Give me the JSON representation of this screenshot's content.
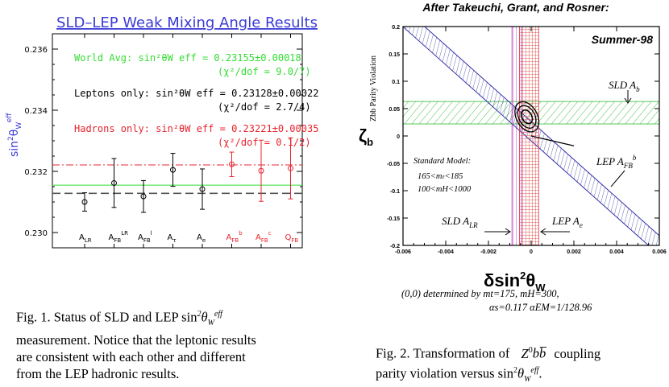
{
  "left_chart": {
    "title": "SLD–LEP Weak Mixing Angle Results",
    "ylabel": "sin²θW eff",
    "ylabel_main": "sin",
    "ylabel_sup": "2",
    "ylabel_theta": "θ",
    "ylabel_sub": "W",
    "ylabel_eff": "eff",
    "y_ticks": [
      "0.230",
      "0.232",
      "0.234",
      "0.236"
    ],
    "world_avg": "World Avg: sin²θW eff = 0.23155±0.00018",
    "world_avg_chi": "(χ²/dof = 9.0/7)",
    "leptons": "Leptons only: sin²θW eff = 0.23128±0.00022",
    "leptons_chi": "(χ²/dof = 2.7/4)",
    "hadrons": "Hadrons only: sin²θW eff = 0.23221±0.00035",
    "hadrons_chi": "(χ²/dof = 0.1/2)",
    "colors": {
      "title": "#3b3bd6",
      "world": "#33dd33",
      "lepton": "#000000",
      "hadron": "#e8242f",
      "ylabel": "#3b3bd6"
    }
  },
  "chart_data": [
    {
      "type": "scatter",
      "title": "SLD–LEP Weak Mixing Angle Results",
      "ylabel": "sin²θW eff",
      "ylim": [
        0.2295,
        0.2365
      ],
      "categories": [
        "ALR",
        "AFB LR",
        "AFB l",
        "Aτ",
        "Ae",
        "AFB b",
        "AFB c",
        "QFB"
      ],
      "category_labels": [
        {
          "base": "A",
          "sub": "LR",
          "sup": ""
        },
        {
          "base": "A",
          "sub": "FB",
          "sup": "LR"
        },
        {
          "base": "A",
          "sub": "FB",
          "sup": "l"
        },
        {
          "base": "A",
          "sub": "τ",
          "sup": ""
        },
        {
          "base": "A",
          "sub": "e",
          "sup": ""
        },
        {
          "base": "A",
          "sub": "FB",
          "sup": "b"
        },
        {
          "base": "A",
          "sub": "FB",
          "sup": "c"
        },
        {
          "base": "Q",
          "sub": "FB",
          "sup": ""
        }
      ],
      "series": [
        {
          "name": "Leptons",
          "color": "#000000",
          "values": [
            0.231,
            0.23162,
            0.23118,
            0.23205,
            0.23142
          ],
          "errors": [
            0.0003,
            0.0008,
            0.00052,
            0.00054,
            0.00066
          ]
        },
        {
          "name": "Hadrons",
          "color": "#e8242f",
          "values": [
            null,
            null,
            null,
            null,
            null,
            0.23223,
            0.23202,
            0.2321
          ],
          "errors": [
            null,
            null,
            null,
            null,
            null,
            0.0004,
            0.001,
            0.001
          ]
        }
      ],
      "reference_lines": [
        {
          "name": "World Avg",
          "value": 0.23155,
          "style": "solid",
          "color": "#33dd33"
        },
        {
          "name": "Leptons only",
          "value": 0.23128,
          "style": "dashed",
          "color": "#555555"
        },
        {
          "name": "Hadrons only",
          "value": 0.23221,
          "style": "dashdot",
          "color": "#e8242f"
        }
      ]
    },
    {
      "type": "scatter",
      "title": "After Takeuchi, Grant, and Rosner:",
      "xlabel": "δsin²θW",
      "ylabel": "ζb",
      "xlim": [
        -0.006,
        0.006
      ],
      "ylim": [
        -0.2,
        0.2
      ],
      "x_ticks": [
        -0.006,
        -0.004,
        -0.002,
        0,
        0.002,
        0.004,
        0.006
      ],
      "y_ticks": [
        -0.2,
        -0.15,
        -0.1,
        -0.05,
        0,
        0.05,
        0.1,
        0.15,
        0.2
      ],
      "bands": [
        {
          "name": "SLD Ab",
          "kind": "horizontal",
          "range": [
            0.022,
            0.063
          ],
          "color": "#33bb33"
        },
        {
          "name": "LEP AFB b",
          "kind": "diagonal",
          "line": [
            [
              -0.0055,
              0.2
            ],
            [
              0.006,
              -0.2
            ]
          ],
          "color": "#3333aa"
        },
        {
          "name": "SLD ALR",
          "kind": "vertical",
          "range": [
            -0.0009,
            -0.00045
          ],
          "color": "#bb33bb"
        },
        {
          "name": "LEP Ae",
          "kind": "vertical",
          "range": [
            -0.00055,
            0.00035
          ],
          "color": "#dd3333"
        }
      ],
      "ellipse_center": [
        -0.0002,
        0.035
      ],
      "sm_range_end": [
        0.002,
        -0.018
      ]
    }
  ],
  "right_chart": {
    "title": "After Takeuchi, Grant, and Rosner:",
    "season": "Summer-98",
    "y_axis_title": "Zbb Parity Violation",
    "ylabel_zeta": "ζ",
    "ylabel_sub": "b",
    "xlabel_delta": "δsin",
    "xlabel_sup": "2",
    "xlabel_theta": "θ",
    "xlabel_sub": "W",
    "x_ticks": [
      "-0.006",
      "-0.004",
      "-0.002",
      "0",
      "0.002",
      "0.004",
      "0.006"
    ],
    "y_ticks": [
      "0.2",
      "0.15",
      "0.1",
      "0.05",
      "0",
      "-0.05",
      "-0.1",
      "-0.15",
      "-0.2"
    ],
    "sld_ab": "SLD A",
    "sld_ab_sub": "b",
    "lep_afb": "LEP A",
    "lep_afb_sub": "FB",
    "lep_afb_sup": "b",
    "sld_alr": "SLD A",
    "sld_alr_sub": "LR",
    "lep_ae": "LEP A",
    "lep_ae_sub": "e",
    "sm_title": "Standard Model:",
    "sm_line1": "165<mₜ<185",
    "sm_line2": "100<mH<1000",
    "note_line1": "(0,0) determined by mt=175, mH=300,",
    "note_line2": "αs=0.117 αEM=1/128.96"
  },
  "captions": {
    "fig1": "Fig. 1. Status of SLD and LEP sin²θW eff measurement. Notice that the leptonic results are consistent with each other and different from the LEP hadronic results.",
    "fig1_line1a": "Fig. 1. Status of SLD and LEP sin",
    "fig1_line2": "measurement. Notice that the leptonic results",
    "fig1_line3": "are consistent with each other and different",
    "fig1_line4": "from the LEP hadronic results.",
    "fig2_line1": "Fig. 2. Transformation of",
    "fig2_z": "Z",
    "fig2_zsup": "0",
    "fig2_bb": "bb̅",
    "fig2_tail": "coupling",
    "fig2_line2": "parity violation versus sin"
  }
}
